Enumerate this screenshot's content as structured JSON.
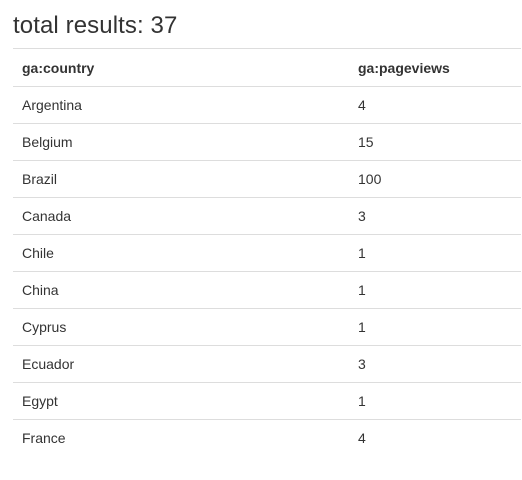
{
  "header": {
    "title": "total results: 37"
  },
  "table": {
    "columns": [
      "ga:country",
      "ga:pageviews"
    ],
    "rows": [
      [
        "Argentina",
        "4"
      ],
      [
        "Belgium",
        "15"
      ],
      [
        "Brazil",
        "100"
      ],
      [
        "Canada",
        "3"
      ],
      [
        "Chile",
        "1"
      ],
      [
        "China",
        "1"
      ],
      [
        "Cyprus",
        "1"
      ],
      [
        "Ecuador",
        "3"
      ],
      [
        "Egypt",
        "1"
      ],
      [
        "France",
        "4"
      ]
    ]
  }
}
